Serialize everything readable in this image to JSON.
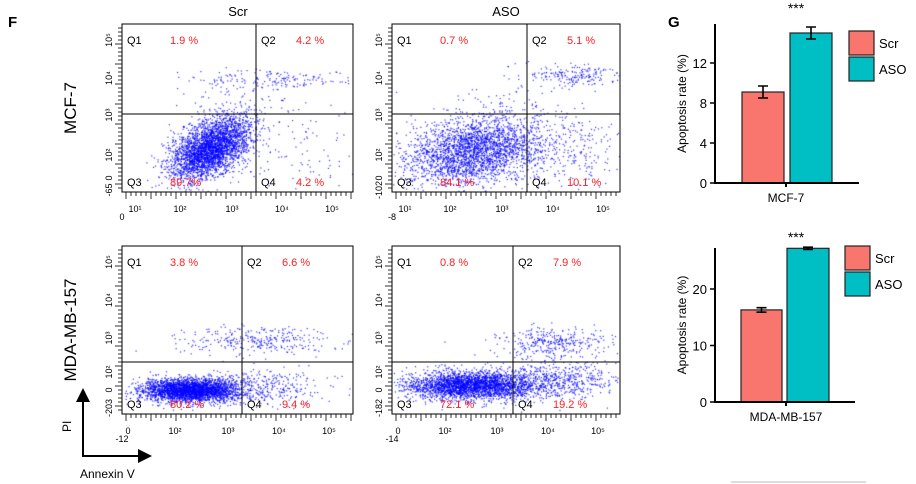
{
  "panel_labels": {
    "flow": "F",
    "bars": "G"
  },
  "column_titles": [
    "Scr",
    "ASO"
  ],
  "row_labels": [
    "MCF-7",
    "MDA-MB-157"
  ],
  "axis_arrows": {
    "x": "Annexin V",
    "y": "PI"
  },
  "colors": {
    "dots": "#0000ff",
    "quadrant_pct": "#ff2020",
    "scr": "#f8766d",
    "aso": "#00bfc4"
  },
  "chart_data": [
    {
      "type": "scatter",
      "title": "Scr",
      "row": "MCF-7",
      "x_tick_labels": [
        "0",
        "10¹",
        "10²",
        "10³",
        "10⁴",
        "10⁵"
      ],
      "y_tick_labels": [
        "10⁵",
        "10⁴",
        "10³",
        "10²",
        "0",
        "-65"
      ],
      "quadrants": [
        {
          "name": "Q1",
          "pct": "1.9 %"
        },
        {
          "name": "Q2",
          "pct": "4.2 %"
        },
        {
          "name": "Q3",
          "pct": "89.7%"
        },
        {
          "name": "Q4",
          "pct": "4.2 %"
        }
      ]
    },
    {
      "type": "scatter",
      "title": "ASO",
      "row": "MCF-7",
      "x_tick_labels": [
        "-8",
        "10¹",
        "10²",
        "10³",
        "10⁴",
        "10⁵"
      ],
      "y_tick_labels": [
        "10⁵",
        "10⁴",
        "10³",
        "10²",
        "0",
        "-102"
      ],
      "quadrants": [
        {
          "name": "Q1",
          "pct": "0.7 %"
        },
        {
          "name": "Q2",
          "pct": "5.1 %"
        },
        {
          "name": "Q3",
          "pct": "84.1 %"
        },
        {
          "name": "Q4",
          "pct": "10.1 %"
        }
      ]
    },
    {
      "type": "scatter",
      "row": "MDA-MB-157",
      "x_tick_labels": [
        "-12",
        "0",
        "10²",
        "10³",
        "10⁴",
        "10⁵"
      ],
      "y_tick_labels": [
        "10⁵",
        "10⁴",
        "10³",
        "10²",
        "0",
        "-203"
      ],
      "quadrants": [
        {
          "name": "Q1",
          "pct": "3.8 %"
        },
        {
          "name": "Q2",
          "pct": "6.6 %"
        },
        {
          "name": "Q3",
          "pct": "80.2 %"
        },
        {
          "name": "Q4",
          "pct": "9.4 %"
        }
      ]
    },
    {
      "type": "scatter",
      "row": "MDA-MB-157",
      "x_tick_labels": [
        "-14",
        "0",
        "10²",
        "10³",
        "10⁴",
        "10⁵"
      ],
      "y_tick_labels": [
        "10⁵",
        "10⁴",
        "10³",
        "10²",
        "0",
        "-182"
      ],
      "quadrants": [
        {
          "name": "Q1",
          "pct": "0.8 %"
        },
        {
          "name": "Q2",
          "pct": "7.9 %"
        },
        {
          "name": "Q3",
          "pct": "72.1 %"
        },
        {
          "name": "Q4",
          "pct": "19.2 %"
        }
      ]
    },
    {
      "type": "bar",
      "categories": [
        "MCF-7"
      ],
      "series": [
        {
          "name": "Scr",
          "values": [
            9.1
          ],
          "error": [
            0.6
          ]
        },
        {
          "name": "ASO",
          "values": [
            15.0
          ],
          "error": [
            0.6
          ]
        }
      ],
      "ylabel": "Apoptosis rate (%)",
      "ylim": [
        0,
        16
      ],
      "y_ticks": [
        "0",
        "4",
        "8",
        "12"
      ],
      "significance": "***",
      "legend": "right"
    },
    {
      "type": "bar",
      "categories": [
        "MDA-MB-157"
      ],
      "series": [
        {
          "name": "Scr",
          "values": [
            16.3
          ],
          "error": [
            0.4
          ]
        },
        {
          "name": "ASO",
          "values": [
            27.2
          ],
          "error": [
            0.2
          ]
        }
      ],
      "ylabel": "Apoptosis rate (%)",
      "ylim": [
        0,
        28
      ],
      "y_ticks": [
        "0",
        "10",
        "20"
      ],
      "significance": "***",
      "legend": "right"
    }
  ]
}
